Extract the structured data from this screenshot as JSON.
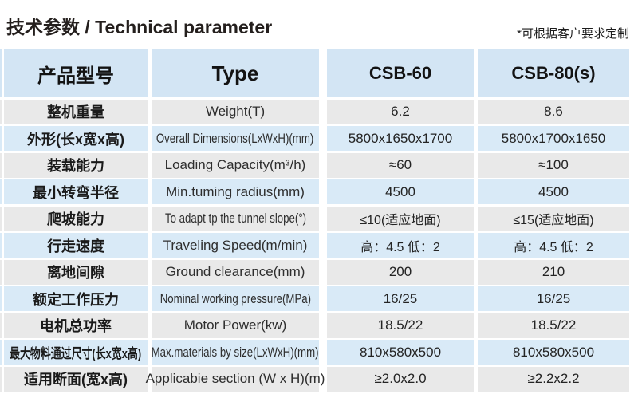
{
  "title": {
    "text": "技术参数 / Technical parameter"
  },
  "note": "*可根据客户要求定制",
  "colors": {
    "header_bg": "#d3e5f4",
    "row_blue_bg": "#d9eaf7",
    "row_gray_bg": "#e9e9e9",
    "title_text": "#241f1d",
    "cell_text": "#1a1a1a"
  },
  "table": {
    "header": {
      "col1": "产品型号",
      "col2": "Type",
      "col3": "CSB-60",
      "col4": "CSB-80(s)"
    },
    "rows": [
      {
        "cn": "整机重量",
        "en": "Weight(T)",
        "csb60": "6.2",
        "csb80": "8.6"
      },
      {
        "cn": "外形(长x宽x高)",
        "en": "Overall Dimensions(LxWxH)(mm)",
        "csb60": "5800x1650x1700",
        "csb80": "5800x1700x1650"
      },
      {
        "cn": "装载能力",
        "en": "Loading Capacity(m³/h)",
        "csb60": "≈60",
        "csb80": "≈100"
      },
      {
        "cn": "最小转弯半径",
        "en": "Min.tuming radius(mm)",
        "csb60": "4500",
        "csb80": "4500"
      },
      {
        "cn": "爬坡能力",
        "en": "To adapt tp the tunnel slope(°)",
        "csb60": "≤10(适应地面)",
        "csb80": "≤15(适应地面)"
      },
      {
        "cn": "行走速度",
        "en": "Traveling Speed(m/min)",
        "csb60": "高：4.5 低：2",
        "csb80": "高：4.5 低：2"
      },
      {
        "cn": "离地间隙",
        "en": "Ground clearance(mm)",
        "csb60": "200",
        "csb80": "210"
      },
      {
        "cn": "额定工作压力",
        "en": "Nominal working pressure(MPa)",
        "csb60": "16/25",
        "csb80": "16/25"
      },
      {
        "cn": "电机总功率",
        "en": "Motor Power(kw)",
        "csb60": "18.5/22",
        "csb80": "18.5/22"
      },
      {
        "cn": "最大物料通过尺寸(长x宽x高)",
        "en": "Max.materials by size(LxWxH)(mm)",
        "csb60": "810x580x500",
        "csb80": "810x580x500"
      },
      {
        "cn": "适用断面(宽x高)",
        "en": "Applicabie section (W x H)(m)",
        "csb60": "≥2.0x2.0",
        "csb80": "≥2.2x2.2"
      }
    ]
  }
}
